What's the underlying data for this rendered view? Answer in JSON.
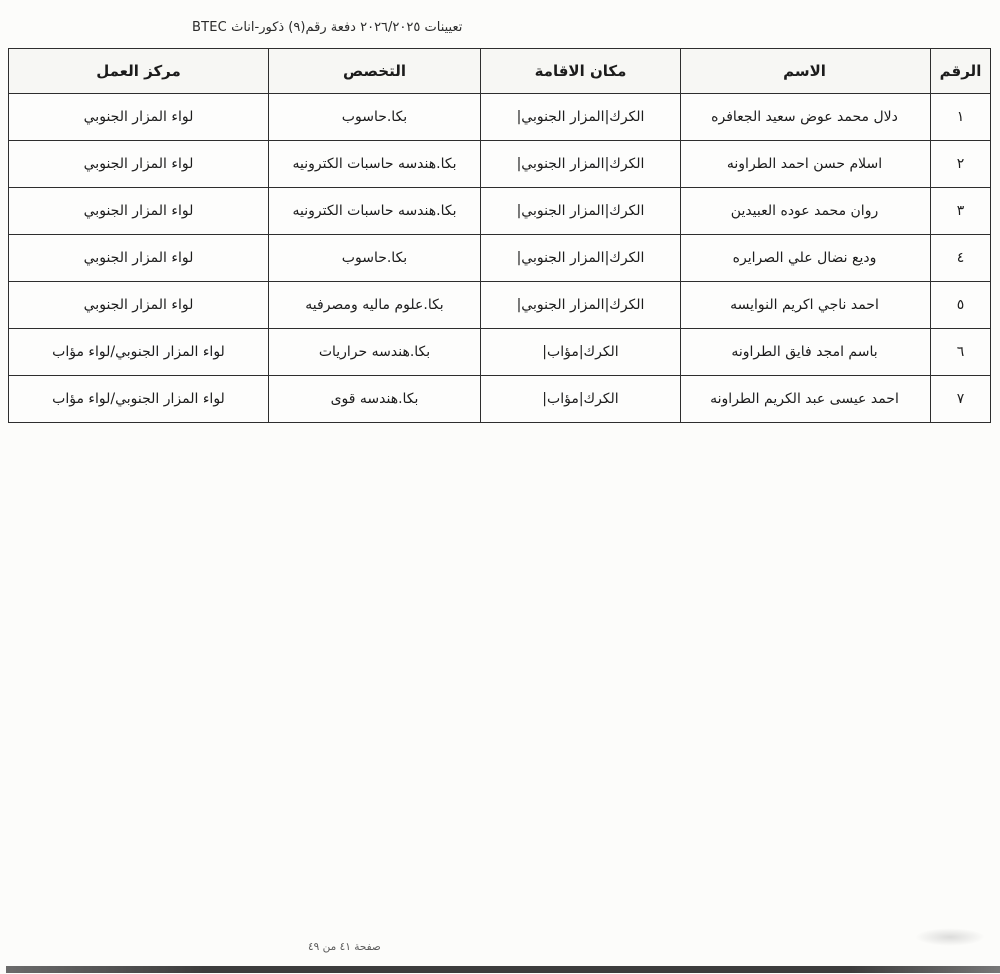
{
  "page": {
    "title": "تعيينات ٢٠٢٦/٢٠٢٥ دفعة رقم(٩) ذكور-اناث BTEC",
    "footer": "صفحة ٤١ من ٤٩"
  },
  "table": {
    "headers": {
      "number": "الرقم",
      "name": "الاسم",
      "residence": "مكان الاقامة",
      "specialization": "التخصص",
      "work_center": "مركز العمل"
    },
    "rows": [
      {
        "number": "١",
        "name": "دلال محمد عوض سعيد الجعافره",
        "residence": "الكرك|المزار الجنوبي|",
        "specialization": "بكا.حاسوب",
        "work_center": "لواء المزار الجنوبي"
      },
      {
        "number": "٢",
        "name": "اسلام حسن احمد الطراونه",
        "residence": "الكرك|المزار الجنوبي|",
        "specialization": "بكا.هندسه حاسبات الكترونيه",
        "work_center": "لواء المزار الجنوبي"
      },
      {
        "number": "٣",
        "name": "روان محمد عوده العبيدين",
        "residence": "الكرك|المزار الجنوبي|",
        "specialization": "بكا.هندسه حاسبات الكترونيه",
        "work_center": "لواء المزار الجنوبي"
      },
      {
        "number": "٤",
        "name": "وديع نضال علي الصرايره",
        "residence": "الكرك|المزار الجنوبي|",
        "specialization": "بكا.حاسوب",
        "work_center": "لواء المزار الجنوبي"
      },
      {
        "number": "٥",
        "name": "احمد ناجي اكريم النوايسه",
        "residence": "الكرك|المزار الجنوبي|",
        "specialization": "بكا.علوم ماليه ومصرفيه",
        "work_center": "لواء المزار الجنوبي"
      },
      {
        "number": "٦",
        "name": "باسم امجد فايق الطراونه",
        "residence": "الكرك|مؤاب|",
        "specialization": "بكا.هندسه حراريات",
        "work_center": "لواء المزار الجنوبي/لواء مؤاب"
      },
      {
        "number": "٧",
        "name": "احمد عيسى عبد الكريم الطراونه",
        "residence": "الكرك|مؤاب|",
        "specialization": "بكا.هندسه قوى",
        "work_center": "لواء المزار الجنوبي/لواء مؤاب"
      }
    ]
  }
}
